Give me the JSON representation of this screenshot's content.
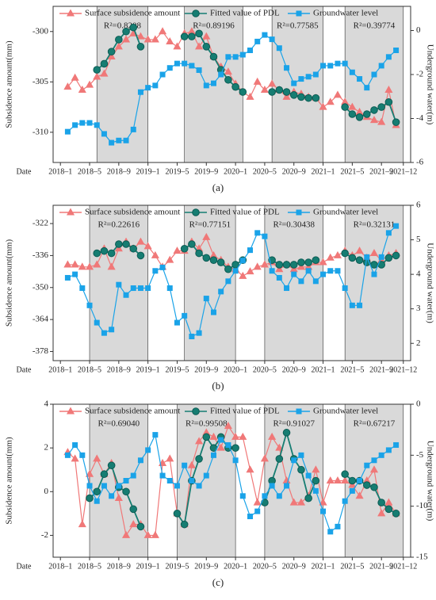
{
  "chart_data": [
    {
      "type": "line",
      "caption": "(a)",
      "xlabel": "Date",
      "ylabel": "Subsidence amount(mm)",
      "y2label": "Underground water(m)",
      "legend": "top",
      "xlim": [
        "2017-12",
        "2022-01"
      ],
      "ylim": [
        -313,
        -297.5
      ],
      "y2lim": [
        -6,
        1.1
      ],
      "xticks": [
        {
          "value": "2018-01",
          "label": "2018–1"
        },
        {
          "value": "2018-05",
          "label": "2018–5"
        },
        {
          "value": "2018-09",
          "label": "2018–9"
        },
        {
          "value": "2019-01",
          "label": "2019–1"
        },
        {
          "value": "2019-05",
          "label": "2019–5"
        },
        {
          "value": "2019-09",
          "label": "2019–9"
        },
        {
          "value": "2020-01",
          "label": "2020–1"
        },
        {
          "value": "2020-05",
          "label": "2020–5"
        },
        {
          "value": "2020-09",
          "label": "2020–9"
        },
        {
          "value": "2021-01",
          "label": "2021–1"
        },
        {
          "value": "2021-05",
          "label": "2021–5"
        },
        {
          "value": "2021-09",
          "label": "2021–9"
        },
        {
          "value": "2021-12",
          "label": "2021–12"
        }
      ],
      "yticks": [
        -310,
        -305,
        -300
      ],
      "y2ticks": [
        -6,
        -4,
        -2,
        0
      ],
      "windows": [
        {
          "x0": "2018-06",
          "x1": "2019-01",
          "label": "R²=0.8208"
        },
        {
          "x0": "2019-06",
          "x1": "2020-02",
          "label": "R²=0.89196"
        },
        {
          "x0": "2020-06",
          "x1": "2021-01",
          "label": "R²=0.77585"
        },
        {
          "x0": "2021-04",
          "x1": "2021-12",
          "label": "R²=0.39774"
        }
      ],
      "x": [
        "2018-02",
        "2018-03",
        "2018-04",
        "2018-05",
        "2018-06",
        "2018-07",
        "2018-08",
        "2018-09",
        "2018-10",
        "2018-11",
        "2018-12",
        "2019-01",
        "2019-02",
        "2019-03",
        "2019-04",
        "2019-05",
        "2019-06",
        "2019-07",
        "2019-08",
        "2019-09",
        "2019-10",
        "2019-11",
        "2019-12",
        "2020-01",
        "2020-02",
        "2020-03",
        "2020-04",
        "2020-05",
        "2020-06",
        "2020-07",
        "2020-08",
        "2020-09",
        "2020-10",
        "2020-11",
        "2020-12",
        "2021-01",
        "2021-02",
        "2021-03",
        "2021-04",
        "2021-05",
        "2021-06",
        "2021-07",
        "2021-08",
        "2021-09",
        "2021-10",
        "2021-11"
      ],
      "series": [
        {
          "name": "Surface subsidence amount",
          "color": "#f07878",
          "marker": "triangle",
          "values": [
            -305.5,
            -304.6,
            -305.8,
            -305.3,
            -304.5,
            -304.2,
            -302.5,
            -301.5,
            -300.8,
            -300.2,
            -300.5,
            -300.8,
            -300.8,
            -300.0,
            -301.0,
            -301.5,
            -300.2,
            -300.0,
            -301.5,
            -300.5,
            -302.5,
            -303.5,
            -304.0,
            -305.2,
            -306.0,
            -306.5,
            -305.0,
            -305.8,
            -305.2,
            -305.8,
            -306.5,
            -306.0,
            -306.2,
            -306.5,
            -306.6,
            -307.5,
            -307.0,
            -306.3,
            -307.0,
            -307.5,
            -308.0,
            -308.5,
            -308.8,
            -309.0,
            -305.8,
            -309.3
          ]
        },
        {
          "name": "Fitted value of PDL",
          "color": "#167d72",
          "marker": "circle",
          "values": [
            null,
            null,
            null,
            null,
            -303.8,
            -303.2,
            -302.0,
            -300.8,
            -300.0,
            -299.6,
            -301.5,
            null,
            null,
            null,
            null,
            null,
            -300.5,
            -300.5,
            -300.2,
            -301.5,
            -302.5,
            -303.8,
            -304.8,
            -305.5,
            -306.0,
            null,
            null,
            null,
            -306.0,
            -305.8,
            -306.0,
            -306.3,
            -306.5,
            -306.6,
            -306.6,
            null,
            null,
            null,
            -307.5,
            -308.2,
            -308.5,
            -308.2,
            -307.8,
            -307.5,
            -307.0,
            -309.0
          ]
        },
        {
          "name": "Groundwater level",
          "color": "#1aa3e8",
          "marker": "square",
          "axis": "y2",
          "values": [
            -4.6,
            -4.3,
            -4.2,
            -4.2,
            -4.3,
            -4.7,
            -5.1,
            -5.0,
            -5.0,
            -4.5,
            -2.8,
            -2.6,
            -2.5,
            -2.0,
            -1.7,
            -1.5,
            -1.5,
            -1.6,
            -1.8,
            -2.5,
            -2.4,
            -2.0,
            -1.2,
            -1.2,
            -1.1,
            -0.9,
            -0.5,
            -0.2,
            -0.4,
            -0.8,
            -1.7,
            -2.4,
            -2.2,
            -2.1,
            -2.0,
            -1.6,
            -1.6,
            -1.5,
            -1.5,
            -1.9,
            -2.2,
            -2.6,
            -2.0,
            -1.6,
            -1.2,
            -0.9
          ]
        }
      ]
    },
    {
      "type": "line",
      "caption": "(b)",
      "xlabel": "Date",
      "ylabel": "Subsidence amount(mm)",
      "y2label": "Underground water(m)",
      "legend": "top",
      "xlim": [
        "2017-12",
        "2022-01"
      ],
      "ylim": [
        -382,
        -314
      ],
      "y2lim": [
        1.5,
        6
      ],
      "xticks": [
        {
          "value": "2018-01",
          "label": "2018–1"
        },
        {
          "value": "2018-05",
          "label": "2018–5"
        },
        {
          "value": "2018-09",
          "label": "2018–9"
        },
        {
          "value": "2019-01",
          "label": "2019–1"
        },
        {
          "value": "2019-05",
          "label": "2019–5"
        },
        {
          "value": "2019-09",
          "label": "2019–9"
        },
        {
          "value": "2020-01",
          "label": "2020–1"
        },
        {
          "value": "2020-05",
          "label": "2020–5"
        },
        {
          "value": "2020-09",
          "label": "2020–9"
        },
        {
          "value": "2021-01",
          "label": "2021–1"
        },
        {
          "value": "2021-05",
          "label": "2021–5"
        },
        {
          "value": "2021-09",
          "label": "2021–9"
        },
        {
          "value": "2021-12",
          "label": "2021–12"
        }
      ],
      "yticks": [
        -378,
        -364,
        -350,
        -336,
        -322
      ],
      "y2ticks": [
        2,
        3,
        4,
        5,
        6
      ],
      "windows": [
        {
          "x0": "2018-05",
          "x1": "2019-01",
          "label": "R²=0.22616"
        },
        {
          "x0": "2019-06",
          "x1": "2020-01",
          "label": "R²=0.77151"
        },
        {
          "x0": "2020-05",
          "x1": "2021-01",
          "label": "R²=0.30438"
        },
        {
          "x0": "2021-04",
          "x1": "2021-12",
          "label": "R²=0.32131"
        }
      ],
      "x": [
        "2018-02",
        "2018-03",
        "2018-04",
        "2018-05",
        "2018-06",
        "2018-07",
        "2018-08",
        "2018-09",
        "2018-10",
        "2018-11",
        "2018-12",
        "2019-01",
        "2019-02",
        "2019-03",
        "2019-04",
        "2019-05",
        "2019-06",
        "2019-07",
        "2019-08",
        "2019-09",
        "2019-10",
        "2019-11",
        "2019-12",
        "2020-01",
        "2020-02",
        "2020-03",
        "2020-04",
        "2020-05",
        "2020-06",
        "2020-07",
        "2020-08",
        "2020-09",
        "2020-10",
        "2020-11",
        "2020-12",
        "2021-01",
        "2021-02",
        "2021-03",
        "2021-04",
        "2021-05",
        "2021-06",
        "2021-07",
        "2021-08",
        "2021-09",
        "2021-10",
        "2021-11"
      ],
      "series": [
        {
          "name": "Surface subsidence amount",
          "color": "#f07878",
          "marker": "triangle",
          "values": [
            -340,
            -340,
            -341,
            -341,
            -340,
            -333,
            -341,
            -333,
            -330,
            -333,
            -330,
            -332,
            -336,
            -341,
            -338,
            -334,
            -334,
            -330,
            -333,
            -328,
            -336,
            -338,
            -341,
            -342,
            -345,
            -343,
            -341,
            -340,
            -339,
            -342,
            -340,
            -342,
            -341,
            -341,
            -339,
            -339,
            -337,
            -336,
            -334,
            -336,
            -334,
            -337,
            -335,
            -338,
            -336,
            -335
          ]
        },
        {
          "name": "Fitted value of PDL",
          "color": "#167d72",
          "marker": "circle",
          "values": [
            null,
            null,
            null,
            null,
            -335,
            -334,
            -335,
            -331,
            -331,
            -333,
            -336,
            null,
            null,
            null,
            null,
            null,
            -333,
            -331,
            -335,
            -337,
            -338,
            -339,
            -342,
            -340,
            -338,
            null,
            null,
            null,
            -338,
            -340,
            -340,
            -340,
            -339,
            -339,
            -338,
            null,
            null,
            null,
            -335,
            -337,
            -338,
            -339,
            -340,
            -340,
            -337,
            -336
          ]
        },
        {
          "name": "Groundwater level",
          "color": "#1aa3e8",
          "marker": "square",
          "axis": "y2",
          "values": [
            3.9,
            4.0,
            3.6,
            3.1,
            2.6,
            2.3,
            2.4,
            3.7,
            3.4,
            3.6,
            3.6,
            3.6,
            4.1,
            4.2,
            3.6,
            2.6,
            2.8,
            2.2,
            2.3,
            3.3,
            2.9,
            3.5,
            3.8,
            4.1,
            4.4,
            4.7,
            5.2,
            5.1,
            4.1,
            3.9,
            3.6,
            4.0,
            3.8,
            4.1,
            3.8,
            4.0,
            4.1,
            4.1,
            3.6,
            3.1,
            3.1,
            4.5,
            4.0,
            4.5,
            5.2,
            5.4
          ]
        }
      ]
    },
    {
      "type": "line",
      "caption": "(c)",
      "xlabel": "Date",
      "ylabel": "Subsidence amount(mm)",
      "y2label": "Underground water(m)",
      "legend": "top",
      "xlim": [
        "2017-12",
        "2022-01"
      ],
      "ylim": [
        -3,
        4
      ],
      "y2lim": [
        -15,
        0
      ],
      "xticks": [
        {
          "value": "2018-01",
          "label": "2018–1"
        },
        {
          "value": "2018-05",
          "label": "2018–5"
        },
        {
          "value": "2018-09",
          "label": "2018–9"
        },
        {
          "value": "2019-01",
          "label": "2019–1"
        },
        {
          "value": "2019-05",
          "label": "2019–5"
        },
        {
          "value": "2019-09",
          "label": "2019–9"
        },
        {
          "value": "2020-01",
          "label": "2020–1"
        },
        {
          "value": "2020-05",
          "label": "2020–5"
        },
        {
          "value": "2020-09",
          "label": "2020–9"
        },
        {
          "value": "2021-01",
          "label": "2021–1"
        },
        {
          "value": "2021-05",
          "label": "2021–5"
        },
        {
          "value": "2021-09",
          "label": "2021–9"
        },
        {
          "value": "2021-12",
          "label": "2021–12"
        }
      ],
      "yticks": [
        -2,
        0,
        2,
        4
      ],
      "y2ticks": [
        -15,
        -10,
        -5,
        0
      ],
      "windows": [
        {
          "x0": "2018-05",
          "x1": "2019-01",
          "label": "R²=0.69040"
        },
        {
          "x0": "2019-05",
          "x1": "2020-01",
          "label": "R²=0.99508"
        },
        {
          "x0": "2020-05",
          "x1": "2021-01",
          "label": "R²=0.91027"
        },
        {
          "x0": "2021-04",
          "x1": "2021-12",
          "label": "R²=0.67217"
        }
      ],
      "x": [
        "2018-02",
        "2018-03",
        "2018-04",
        "2018-05",
        "2018-06",
        "2018-07",
        "2018-08",
        "2018-09",
        "2018-10",
        "2018-11",
        "2018-12",
        "2019-01",
        "2019-02",
        "2019-03",
        "2019-04",
        "2019-05",
        "2019-06",
        "2019-07",
        "2019-08",
        "2019-09",
        "2019-10",
        "2019-11",
        "2019-12",
        "2020-01",
        "2020-02",
        "2020-03",
        "2020-04",
        "2020-05",
        "2020-06",
        "2020-07",
        "2020-08",
        "2020-09",
        "2020-10",
        "2020-11",
        "2020-12",
        "2021-01",
        "2021-02",
        "2021-03",
        "2021-04",
        "2021-05",
        "2021-06",
        "2021-07",
        "2021-08",
        "2021-09",
        "2021-10",
        "2021-11"
      ],
      "series": [
        {
          "name": "Surface subsidence amount",
          "color": "#f07878",
          "marker": "triangle",
          "values": [
            1.8,
            1.5,
            -1.5,
            0.8,
            1.5,
            0.8,
            1.3,
            -0.3,
            -2.0,
            -1.5,
            -1.5,
            -2.0,
            -2.0,
            1.3,
            1.5,
            -1.0,
            -1.5,
            1.2,
            2.3,
            2.7,
            2.5,
            2.0,
            3.0,
            2.5,
            2.5,
            1.0,
            -0.5,
            1.5,
            2.5,
            2.0,
            0.5,
            -0.5,
            -0.5,
            -0.2,
            1.0,
            -0.5,
            0.5,
            0.5,
            0.5,
            0.3,
            -0.2,
            0.5,
            1.0,
            -1.0,
            -0.5,
            -1.0
          ]
        },
        {
          "name": "Fitted value of PDL",
          "color": "#167d72",
          "marker": "circle",
          "values": [
            null,
            null,
            null,
            -0.3,
            0.0,
            0.8,
            1.2,
            0.2,
            0.0,
            -0.8,
            -1.6,
            null,
            null,
            null,
            null,
            -1.0,
            -1.5,
            0.5,
            1.5,
            2.5,
            2.0,
            2.5,
            2.0,
            2.0,
            null,
            null,
            null,
            -0.5,
            0.5,
            1.5,
            2.7,
            1.5,
            1.0,
            -0.3,
            0.5,
            null,
            null,
            null,
            0.8,
            0.5,
            0.5,
            0.3,
            0.2,
            -0.5,
            -0.8,
            -1.0
          ]
        },
        {
          "name": "Groundwater level",
          "color": "#1aa3e8",
          "marker": "square",
          "axis": "y2",
          "values": [
            -5.0,
            -4.0,
            -5.0,
            -8.0,
            -9.5,
            -8.0,
            -9.0,
            -8.0,
            -7.5,
            -7.0,
            -5.5,
            -4.5,
            -3.0,
            -7.0,
            -7.5,
            -8.0,
            -6.0,
            -7.5,
            -8.0,
            -7.0,
            -5.0,
            -3.5,
            -4.0,
            -5.5,
            -9.0,
            -11.0,
            -10.5,
            -9.0,
            -8.0,
            -9.0,
            -8.0,
            -5.5,
            -5.0,
            -7.0,
            -8.5,
            -10.5,
            -12.5,
            -12.0,
            -9.5,
            -8.5,
            -7.5,
            -6.0,
            -5.5,
            -5.0,
            -4.5,
            -4.0
          ]
        }
      ]
    }
  ]
}
